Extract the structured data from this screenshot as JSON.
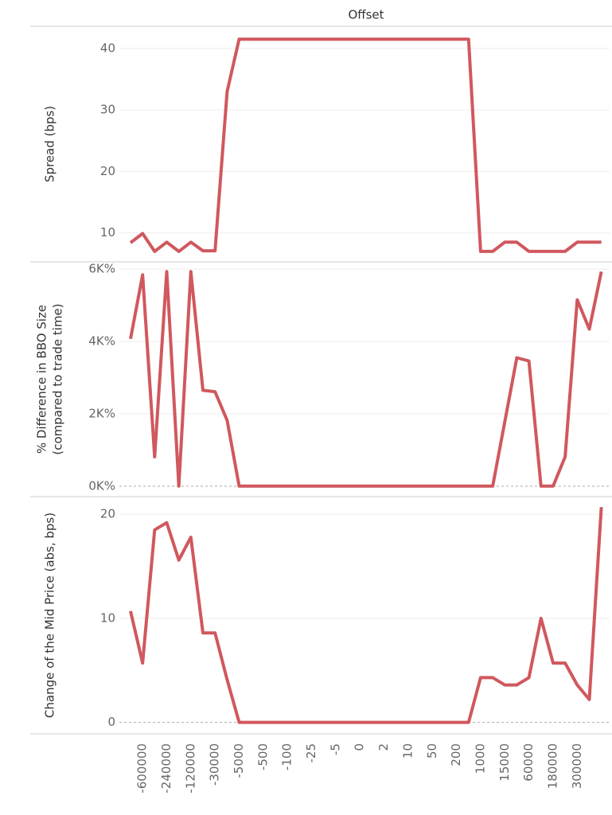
{
  "chart_data": {
    "type": "line",
    "x_label": "Offset",
    "color": "#d0585e",
    "grid": true,
    "categories": [
      null,
      "-600000",
      null,
      "-240000",
      null,
      "-120000",
      null,
      "-30000",
      null,
      "-5000",
      null,
      "-500",
      null,
      "-100",
      null,
      "-25",
      null,
      "-5",
      null,
      "0",
      null,
      "2",
      null,
      "10",
      null,
      "50",
      null,
      "200",
      null,
      "1000",
      null,
      "15000",
      null,
      "60000",
      null,
      "180000",
      null,
      "300000",
      null,
      null
    ],
    "panels": [
      {
        "y_label": [
          "Spread (bps)"
        ],
        "ylim": [
          5.3,
          43.6
        ],
        "yticks": [
          10,
          20,
          30,
          40
        ],
        "values": [
          8.4,
          9.9,
          7,
          8.5,
          7,
          8.5,
          7.1,
          7.1,
          33,
          41.5,
          41.5,
          41.5,
          41.5,
          41.5,
          41.5,
          41.5,
          41.5,
          41.5,
          41.5,
          41.5,
          41.5,
          41.5,
          41.5,
          41.5,
          41.5,
          41.5,
          41.5,
          41.5,
          41.5,
          7,
          7,
          8.5,
          8.5,
          7,
          7,
          7,
          7,
          8.5,
          8.5,
          8.5
        ]
      },
      {
        "y_label": [
          "% Difference in BBO Size",
          "(compared to trade time)"
        ],
        "ylim": [
          -290,
          6200
        ],
        "yticks": [
          {
            "value": 0,
            "label": "0K%"
          },
          {
            "value": 2000,
            "label": "2K%"
          },
          {
            "value": 4000,
            "label": "4K%"
          },
          {
            "value": 6000,
            "label": "6K%"
          }
        ],
        "values": [
          4070,
          5840,
          810,
          5930,
          0,
          5930,
          2650,
          2610,
          1820,
          0,
          0,
          0,
          0,
          0,
          0,
          0,
          0,
          0,
          0,
          0,
          0,
          0,
          0,
          0,
          0,
          0,
          0,
          0,
          0,
          0,
          0,
          1780,
          3550,
          3460,
          0,
          0,
          810,
          5150,
          4340,
          5930
        ]
      },
      {
        "y_label": [
          "Change of the Mid Price (abs, bps)"
        ],
        "ylim": [
          -1.1,
          21.7
        ],
        "yticks": [
          0,
          10,
          20
        ],
        "values": [
          10.7,
          5.7,
          18.5,
          19.2,
          15.6,
          17.8,
          8.6,
          8.6,
          4.1,
          0,
          0,
          0,
          0,
          0,
          0,
          0,
          0,
          0,
          0,
          0,
          0,
          0,
          0,
          0,
          0,
          0,
          0,
          0,
          0,
          4.3,
          4.3,
          3.6,
          3.6,
          4.3,
          10,
          5.7,
          5.7,
          3.6,
          2.2,
          20.7
        ]
      }
    ]
  }
}
